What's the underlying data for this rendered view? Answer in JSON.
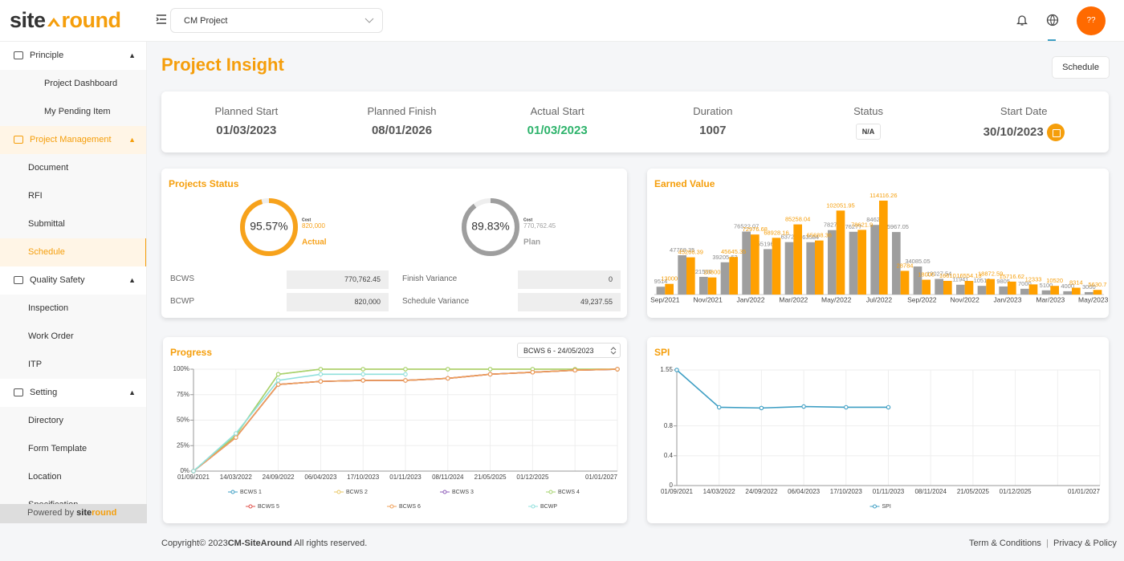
{
  "header": {
    "logo": {
      "left": "site",
      "right": "round"
    },
    "project": "CM Project",
    "avatar": "??"
  },
  "sidebar": {
    "sections": [
      {
        "label": "Principle",
        "items": [
          "Project Dashboard",
          "My Pending Item"
        ]
      },
      {
        "label": "Project Management",
        "items": [
          "Document",
          "RFI",
          "Submittal",
          "Schedule"
        ]
      },
      {
        "label": "Quality Safety",
        "items": [
          "Inspection",
          "Work Order",
          "ITP"
        ]
      },
      {
        "label": "Setting",
        "items": [
          "Directory",
          "Form Template",
          "Location",
          "Specification"
        ]
      }
    ],
    "powered_by": "Powered by",
    "brand_left": "site",
    "brand_right": "round"
  },
  "page": {
    "title": "Project Insight",
    "button": "Schedule"
  },
  "summary": [
    {
      "label": "Planned Start",
      "value": "01/03/2023"
    },
    {
      "label": "Planned Finish",
      "value": "08/01/2026"
    },
    {
      "label": "Actual Start",
      "value": "01/03/2023"
    },
    {
      "label": "Duration",
      "value": "1007"
    },
    {
      "label": "Status",
      "value": "N/A"
    },
    {
      "label": "Start Date",
      "value": "30/10/2023"
    }
  ],
  "projects_status": {
    "title": "Projects Status",
    "gauges": [
      {
        "value": 95.57,
        "label": "95.57%",
        "cost_caption": "Cost",
        "cost": "820,000",
        "caption": "Actual",
        "color": "#f7a21b"
      },
      {
        "value": 89.83,
        "label": "89.83%",
        "cost_caption": "Cost",
        "cost": "770,762.45",
        "caption": "Plan",
        "color": "#9e9e9e"
      }
    ],
    "table": [
      [
        "BCWS",
        "770,762.45",
        "Finish Variance",
        "0"
      ],
      [
        "BCWP",
        "820,000",
        "Schedule Variance",
        "49,237.55"
      ]
    ]
  },
  "progress_select": "BCWS 6 - 24/05/2023",
  "chart_data": [
    {
      "type": "bar",
      "title": "Earned Value",
      "categories": [
        "Sep/2021",
        null,
        "Nov/2021",
        null,
        "Jan/2022",
        null,
        "Mar/2022",
        null,
        "May/2022",
        null,
        "Jul/2022",
        null,
        "Sep/2022",
        null,
        "Nov/2022",
        null,
        "Jan/2023",
        null,
        "Mar/2023",
        null,
        "May/2023"
      ],
      "series": [
        {
          "color": "#9e9e9e",
          "values": [
            9514,
            47768.35,
            21500,
            39205.63,
            76522.07,
            55196.1,
            63726,
            63584,
            78273,
            76277,
            84621,
            75967.05,
            34085.05,
            19027.54,
            11941,
            10519,
            9805,
            7000,
            5100,
            4000,
            3000
          ]
        },
        {
          "color": "#ffa000",
          "values": [
            13000,
            45266.39,
            20800,
            45645.35,
            72976.68,
            68928.16,
            85258.04,
            65688.36,
            102051.95,
            78621.9,
            114116.26,
            28784,
            18000,
            16610,
            16554.13,
            18872.59,
            15716.62,
            12333,
            10520,
            8314,
            5630.7
          ]
        }
      ]
    },
    {
      "type": "line",
      "title": "Progress",
      "categories": [
        "01/09/2021",
        "14/03/2022",
        "24/09/2022",
        "06/04/2023",
        "17/10/2023",
        "01/11/2023",
        "08/11/2024",
        "21/05/2025",
        "01/12/2025",
        null,
        "01/01/2027"
      ],
      "ylim": [
        0,
        100
      ],
      "yticks": [
        {
          "value": 0,
          "label": "0%"
        },
        {
          "value": 25,
          "label": "25%"
        },
        {
          "value": 50,
          "label": "50%"
        },
        {
          "value": 75,
          "label": "75%"
        },
        {
          "value": 100,
          "label": "100%"
        }
      ],
      "grid": true,
      "series": [
        {
          "name": "BCWS 1",
          "color": "#3f9fc4",
          "values": [
            0,
            33,
            85,
            88,
            89,
            89,
            91,
            95,
            97,
            99,
            100
          ]
        },
        {
          "name": "BCWS 2",
          "color": "#e9c766",
          "values": [
            0,
            35,
            95,
            100,
            100,
            100,
            100,
            100,
            100,
            100,
            100
          ]
        },
        {
          "name": "BCWS 3",
          "color": "#8e5cb8",
          "values": [
            0,
            33,
            85,
            88,
            89,
            89,
            91,
            95,
            97,
            99,
            100
          ]
        },
        {
          "name": "BCWS 4",
          "color": "#a5d36e",
          "values": [
            0,
            35,
            95,
            100,
            100,
            100,
            100,
            100,
            100,
            100,
            100
          ]
        },
        {
          "name": "BCWS 5",
          "color": "#e0504a",
          "values": [
            0,
            33,
            85,
            88,
            89,
            89,
            91,
            95,
            97,
            99,
            100
          ]
        },
        {
          "name": "BCWS 6",
          "color": "#f0a15a",
          "values": [
            0,
            33,
            85,
            88,
            89,
            89,
            91,
            95,
            97,
            99,
            100
          ]
        },
        {
          "name": "BCWP",
          "color": "#90e0dc",
          "values": [
            0,
            37,
            89,
            95,
            95,
            95,
            null,
            null,
            null,
            null,
            null
          ]
        }
      ]
    },
    {
      "type": "line",
      "title": "SPI",
      "categories": [
        "01/09/2021",
        "14/03/2022",
        "24/09/2022",
        "06/04/2023",
        "17/10/2023",
        "01/11/2023",
        "08/11/2024",
        "21/05/2025",
        "01/12/2025",
        null,
        "01/01/2027"
      ],
      "ylim": [
        0,
        1.55
      ],
      "yticks": [
        0,
        0.4,
        0.8,
        1.55
      ],
      "grid": true,
      "series": [
        {
          "name": "SPI",
          "color": "#3f9fc4",
          "values": [
            1.55,
            1.05,
            1.04,
            1.06,
            1.05,
            1.05,
            null,
            null,
            null,
            null,
            null
          ]
        }
      ]
    }
  ],
  "footer": {
    "copyright": "Copyright© 2023",
    "company": "CM-SiteAround",
    "rights": " All rights reserved.",
    "terms": "Term & Conditions",
    "separator": "|",
    "privacy": "Privacy & Policy"
  }
}
